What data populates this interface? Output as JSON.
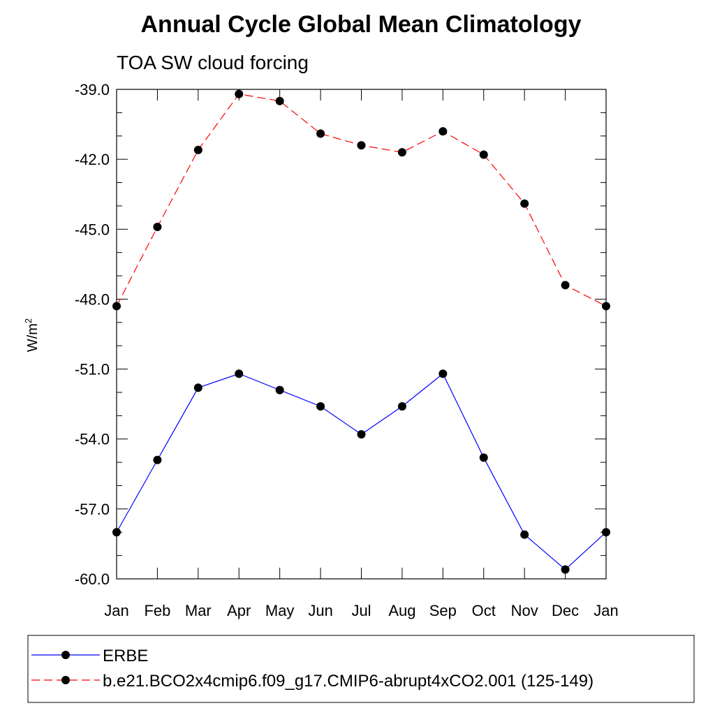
{
  "chart_data": {
    "type": "line",
    "title": "Annual Cycle Global Mean Climatology",
    "subtitle": "TOA SW cloud forcing",
    "ylabel": "W/m",
    "ylabel_sup": "2",
    "xlabel": "",
    "categories": [
      "Jan",
      "Feb",
      "Mar",
      "Apr",
      "May",
      "Jun",
      "Jul",
      "Aug",
      "Sep",
      "Oct",
      "Nov",
      "Dec",
      "Jan"
    ],
    "ylim": [
      -60.0,
      -39.0
    ],
    "yticks": [
      -39.0,
      -42.0,
      -45.0,
      -48.0,
      -51.0,
      -54.0,
      -57.0,
      -60.0
    ],
    "ytick_labels": [
      "-39.0",
      "-42.0",
      "-45.0",
      "-48.0",
      "-51.0",
      "-54.0",
      "-57.0",
      "-60.0"
    ],
    "grid": false,
    "legend_position": "bottom",
    "series": [
      {
        "name": "ERBE",
        "color": "#0000ff",
        "style": "solid",
        "marker": "filled-circle",
        "values": [
          -58.0,
          -54.9,
          -51.8,
          -51.2,
          -51.9,
          -52.6,
          -53.8,
          -52.6,
          -51.2,
          -54.8,
          -58.1,
          -59.6,
          -58.0
        ]
      },
      {
        "name": "b.e21.BCO2x4cmip6.f09_g17.CMIP6-abrupt4xCO2.001 (125-149)",
        "color": "#ff0000",
        "style": "dashed",
        "marker": "filled-circle",
        "values": [
          -48.3,
          -44.9,
          -41.6,
          -39.2,
          -39.5,
          -40.9,
          -41.4,
          -41.7,
          -40.8,
          -41.8,
          -43.9,
          -47.4,
          -48.3
        ]
      }
    ]
  }
}
